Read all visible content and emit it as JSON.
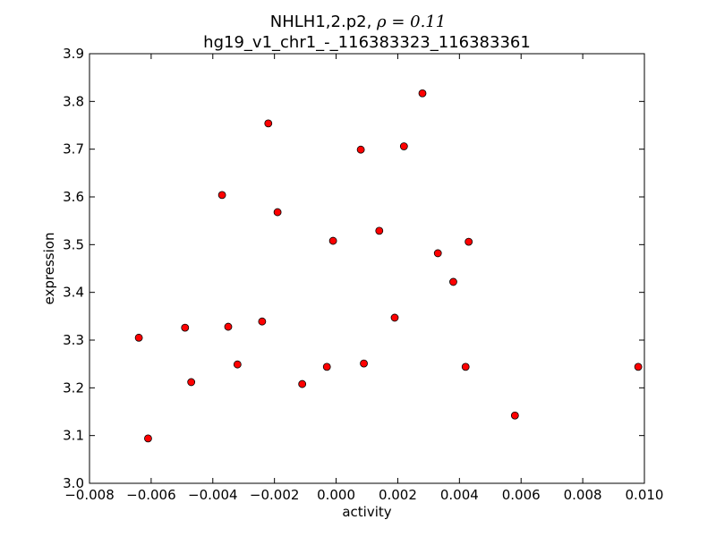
{
  "chart_data": {
    "type": "scatter",
    "title_line1": "NHLH1,2.p2, ",
    "title_rho": "ρ = 0.11",
    "title_line2": "hg19_v1_chr1_-_116383323_116383361",
    "xlabel": "activity",
    "ylabel": "expression",
    "xlim": [
      -0.008,
      0.01
    ],
    "ylim": [
      3.0,
      3.9
    ],
    "xticks": [
      {
        "value": -0.008,
        "label": "−0.008"
      },
      {
        "value": -0.006,
        "label": "−0.006"
      },
      {
        "value": -0.004,
        "label": "−0.004"
      },
      {
        "value": -0.002,
        "label": "−0.002"
      },
      {
        "value": 0.0,
        "label": "0.000"
      },
      {
        "value": 0.002,
        "label": "0.002"
      },
      {
        "value": 0.004,
        "label": "0.004"
      },
      {
        "value": 0.006,
        "label": "0.006"
      },
      {
        "value": 0.008,
        "label": "0.008"
      },
      {
        "value": 0.01,
        "label": "0.010"
      }
    ],
    "yticks": [
      {
        "value": 3.0,
        "label": "3.0"
      },
      {
        "value": 3.1,
        "label": "3.1"
      },
      {
        "value": 3.2,
        "label": "3.2"
      },
      {
        "value": 3.3,
        "label": "3.3"
      },
      {
        "value": 3.4,
        "label": "3.4"
      },
      {
        "value": 3.5,
        "label": "3.5"
      },
      {
        "value": 3.6,
        "label": "3.6"
      },
      {
        "value": 3.7,
        "label": "3.7"
      },
      {
        "value": 3.8,
        "label": "3.8"
      },
      {
        "value": 3.9,
        "label": "3.9"
      }
    ],
    "grid": false,
    "marker_color": "#ff0000",
    "marker_edge_color": "#000000",
    "points": [
      {
        "x": -0.0064,
        "y": 3.305
      },
      {
        "x": -0.0061,
        "y": 3.094
      },
      {
        "x": -0.0049,
        "y": 3.326
      },
      {
        "x": -0.0047,
        "y": 3.212
      },
      {
        "x": -0.0037,
        "y": 3.604
      },
      {
        "x": -0.0035,
        "y": 3.328
      },
      {
        "x": -0.0032,
        "y": 3.249
      },
      {
        "x": -0.0024,
        "y": 3.339
      },
      {
        "x": -0.0022,
        "y": 3.754
      },
      {
        "x": -0.0019,
        "y": 3.568
      },
      {
        "x": -0.0011,
        "y": 3.208
      },
      {
        "x": -0.0003,
        "y": 3.244
      },
      {
        "x": -0.0001,
        "y": 3.508
      },
      {
        "x": 0.0008,
        "y": 3.699
      },
      {
        "x": 0.0009,
        "y": 3.251
      },
      {
        "x": 0.0014,
        "y": 3.529
      },
      {
        "x": 0.0019,
        "y": 3.347
      },
      {
        "x": 0.0022,
        "y": 3.706
      },
      {
        "x": 0.0028,
        "y": 3.817
      },
      {
        "x": 0.0033,
        "y": 3.482
      },
      {
        "x": 0.0038,
        "y": 3.422
      },
      {
        "x": 0.0042,
        "y": 3.244
      },
      {
        "x": 0.0043,
        "y": 3.506
      },
      {
        "x": 0.0058,
        "y": 3.142
      },
      {
        "x": 0.0098,
        "y": 3.244
      }
    ]
  }
}
